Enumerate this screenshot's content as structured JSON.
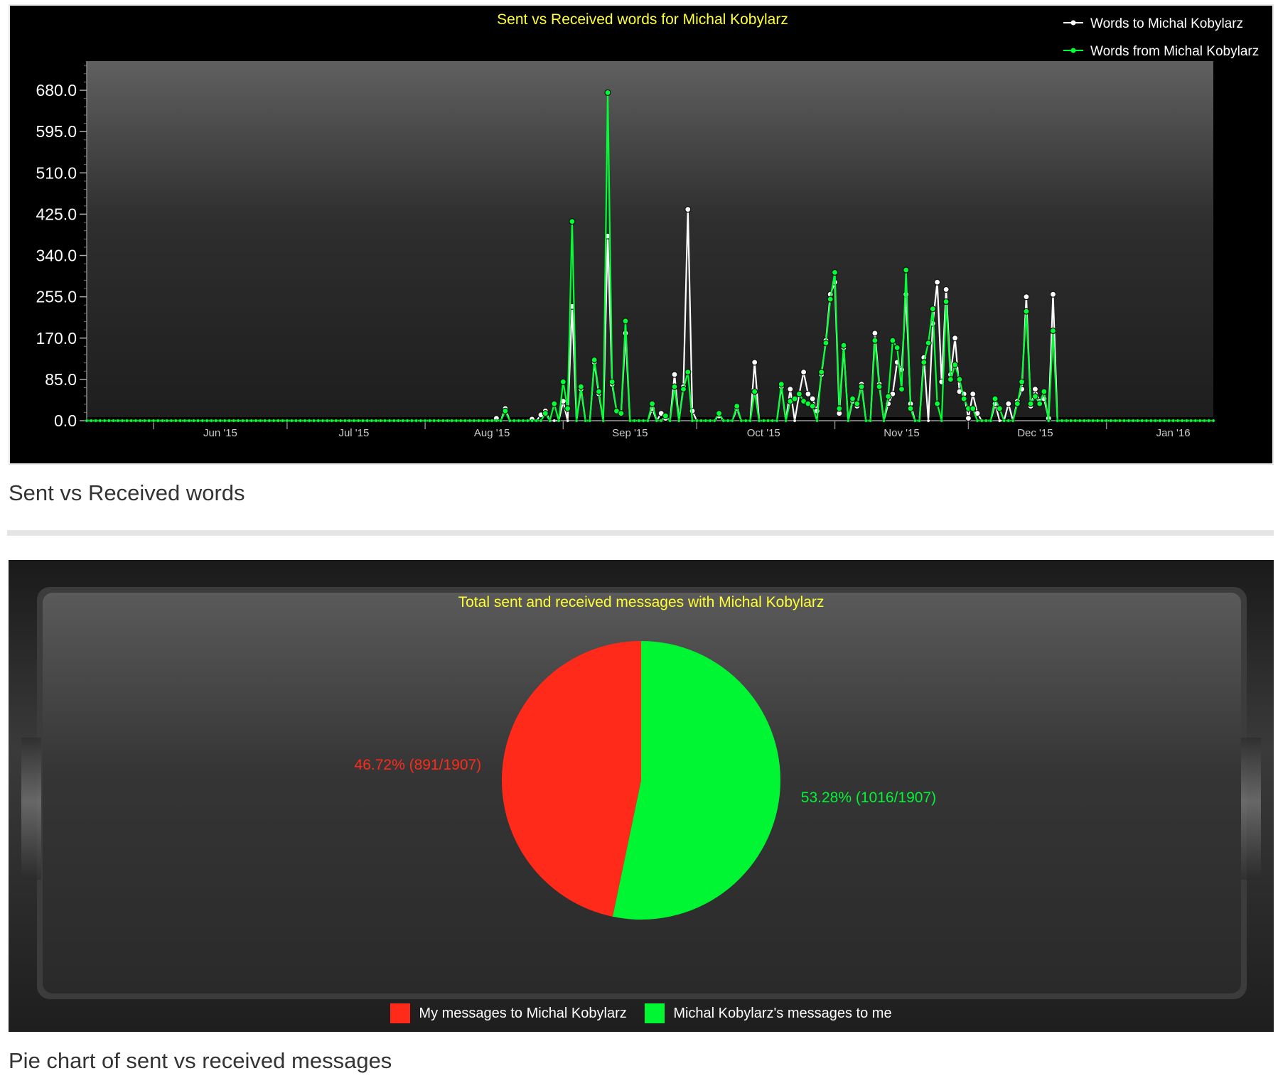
{
  "charts": {
    "words": {
      "caption": "Sent vs Received words",
      "title": "Sent vs Received words for Michal Kobylarz",
      "title_color": "#ffff33",
      "legend": [
        {
          "label": "Words to Michal Kobylarz",
          "color": "#ffffff"
        },
        {
          "label": "Words from Michal Kobylarz",
          "color": "#00ff33"
        }
      ]
    },
    "messages": {
      "caption": "Pie chart of sent vs received messages",
      "title": "Total sent and received messages with Michal Kobylarz",
      "title_color": "#ffff33",
      "legend": [
        {
          "label": "My messages to Michal Kobylarz",
          "color": "#ff2a1a"
        },
        {
          "label": "Michal Kobylarz's messages to me",
          "color": "#00f533"
        }
      ]
    }
  },
  "chart_data": [
    {
      "type": "line",
      "title": "Sent vs Received words for Michal Kobylarz",
      "xlabel": "",
      "ylabel": "",
      "ylim": [
        0,
        740
      ],
      "y_ticks": [
        "0.0",
        "85.0",
        "170.0",
        "255.0",
        "340.0",
        "425.0",
        "510.0",
        "595.0",
        "680.0"
      ],
      "x_ticks": [
        "Jun '15",
        "Jul '15",
        "Aug '15",
        "Sep '15",
        "Oct '15",
        "Nov '15",
        "Dec '15",
        "Jan '16"
      ],
      "x_range": [
        "2015-05-17",
        "2016-01-25"
      ],
      "grid": false,
      "legend_position": "top-right",
      "series": [
        {
          "name": "Words to Michal Kobylarz",
          "color": "#ffffff",
          "points": [
            [
              "2015-08-17",
              5
            ],
            [
              "2015-08-19",
              25
            ],
            [
              "2015-08-25",
              3
            ],
            [
              "2015-08-27",
              12
            ],
            [
              "2015-08-28",
              20
            ],
            [
              "2015-09-01",
              40
            ],
            [
              "2015-09-02",
              0
            ],
            [
              "2015-09-03",
              235
            ],
            [
              "2015-09-05",
              65
            ],
            [
              "2015-09-08",
              120
            ],
            [
              "2015-09-09",
              55
            ],
            [
              "2015-09-10",
              0
            ],
            [
              "2015-09-11",
              380
            ],
            [
              "2015-09-12",
              75
            ],
            [
              "2015-09-13",
              20
            ],
            [
              "2015-09-14",
              15
            ],
            [
              "2015-09-15",
              180
            ],
            [
              "2015-09-21",
              25
            ],
            [
              "2015-09-23",
              15
            ],
            [
              "2015-09-24",
              5
            ],
            [
              "2015-09-26",
              95
            ],
            [
              "2015-09-28",
              70
            ],
            [
              "2015-09-29",
              435
            ],
            [
              "2015-09-30",
              20
            ],
            [
              "2015-10-06",
              10
            ],
            [
              "2015-10-10",
              25
            ],
            [
              "2015-10-14",
              120
            ],
            [
              "2015-10-20",
              70
            ],
            [
              "2015-10-22",
              65
            ],
            [
              "2015-10-24",
              55
            ],
            [
              "2015-10-25",
              100
            ],
            [
              "2015-10-26",
              55
            ],
            [
              "2015-10-27",
              45
            ],
            [
              "2015-10-28",
              20
            ],
            [
              "2015-10-29",
              95
            ],
            [
              "2015-10-30",
              165
            ],
            [
              "2015-10-31",
              260
            ],
            [
              "2015-11-01",
              285
            ],
            [
              "2015-11-02",
              15
            ],
            [
              "2015-11-03",
              150
            ],
            [
              "2015-11-05",
              40
            ],
            [
              "2015-11-06",
              30
            ],
            [
              "2015-11-07",
              75
            ],
            [
              "2015-11-10",
              180
            ],
            [
              "2015-11-11",
              75
            ],
            [
              "2015-11-13",
              35
            ],
            [
              "2015-11-14",
              55
            ],
            [
              "2015-11-15",
              120
            ],
            [
              "2015-11-16",
              105
            ],
            [
              "2015-11-17",
              260
            ],
            [
              "2015-11-18",
              35
            ],
            [
              "2015-11-21",
              130
            ],
            [
              "2015-11-23",
              200
            ],
            [
              "2015-11-24",
              285
            ],
            [
              "2015-11-25",
              80
            ],
            [
              "2015-11-26",
              270
            ],
            [
              "2015-11-27",
              95
            ],
            [
              "2015-11-28",
              170
            ],
            [
              "2015-11-29",
              60
            ],
            [
              "2015-11-30",
              55
            ],
            [
              "2015-12-01",
              5
            ],
            [
              "2015-12-02",
              55
            ],
            [
              "2015-12-03",
              15
            ],
            [
              "2015-12-07",
              35
            ],
            [
              "2015-12-10",
              35
            ],
            [
              "2015-12-12",
              40
            ],
            [
              "2015-12-13",
              65
            ],
            [
              "2015-12-14",
              255
            ],
            [
              "2015-12-15",
              30
            ],
            [
              "2015-12-16",
              65
            ],
            [
              "2015-12-17",
              40
            ],
            [
              "2015-12-18",
              45
            ],
            [
              "2015-12-19",
              5
            ],
            [
              "2015-12-20",
              260
            ]
          ]
        },
        {
          "name": "Words from Michal Kobylarz",
          "color": "#00ff33",
          "points": [
            [
              "2015-08-19",
              20
            ],
            [
              "2015-08-28",
              15
            ],
            [
              "2015-08-30",
              35
            ],
            [
              "2015-09-01",
              80
            ],
            [
              "2015-09-02",
              25
            ],
            [
              "2015-09-03",
              410
            ],
            [
              "2015-09-05",
              70
            ],
            [
              "2015-09-08",
              125
            ],
            [
              "2015-09-09",
              60
            ],
            [
              "2015-09-11",
              675
            ],
            [
              "2015-09-12",
              80
            ],
            [
              "2015-09-13",
              20
            ],
            [
              "2015-09-14",
              15
            ],
            [
              "2015-09-15",
              205
            ],
            [
              "2015-09-21",
              35
            ],
            [
              "2015-09-24",
              10
            ],
            [
              "2015-09-26",
              70
            ],
            [
              "2015-09-28",
              65
            ],
            [
              "2015-09-29",
              100
            ],
            [
              "2015-10-06",
              15
            ],
            [
              "2015-10-10",
              30
            ],
            [
              "2015-10-14",
              60
            ],
            [
              "2015-10-20",
              75
            ],
            [
              "2015-10-22",
              40
            ],
            [
              "2015-10-23",
              45
            ],
            [
              "2015-10-24",
              55
            ],
            [
              "2015-10-25",
              40
            ],
            [
              "2015-10-26",
              35
            ],
            [
              "2015-10-27",
              30
            ],
            [
              "2015-10-29",
              100
            ],
            [
              "2015-10-30",
              160
            ],
            [
              "2015-10-31",
              250
            ],
            [
              "2015-11-01",
              305
            ],
            [
              "2015-11-02",
              25
            ],
            [
              "2015-11-03",
              155
            ],
            [
              "2015-11-05",
              45
            ],
            [
              "2015-11-06",
              35
            ],
            [
              "2015-11-07",
              70
            ],
            [
              "2015-11-10",
              165
            ],
            [
              "2015-11-11",
              70
            ],
            [
              "2015-11-13",
              50
            ],
            [
              "2015-11-14",
              165
            ],
            [
              "2015-11-15",
              150
            ],
            [
              "2015-11-16",
              65
            ],
            [
              "2015-11-17",
              310
            ],
            [
              "2015-11-18",
              25
            ],
            [
              "2015-11-21",
              120
            ],
            [
              "2015-11-22",
              160
            ],
            [
              "2015-11-23",
              230
            ],
            [
              "2015-11-24",
              35
            ],
            [
              "2015-11-26",
              245
            ],
            [
              "2015-11-27",
              85
            ],
            [
              "2015-11-28",
              115
            ],
            [
              "2015-11-29",
              85
            ],
            [
              "2015-11-30",
              45
            ],
            [
              "2015-12-01",
              25
            ],
            [
              "2015-12-02",
              25
            ],
            [
              "2015-12-07",
              45
            ],
            [
              "2015-12-08",
              25
            ],
            [
              "2015-12-12",
              35
            ],
            [
              "2015-12-13",
              80
            ],
            [
              "2015-12-14",
              225
            ],
            [
              "2015-12-15",
              35
            ],
            [
              "2015-12-16",
              50
            ],
            [
              "2015-12-17",
              35
            ],
            [
              "2015-12-18",
              60
            ],
            [
              "2015-12-20",
              185
            ]
          ]
        }
      ]
    },
    {
      "type": "pie",
      "title": "Total sent and received messages with Michal Kobylarz",
      "slices": [
        {
          "name": "My messages to Michal Kobylarz",
          "value": 891,
          "label": "46.72% (891/1907)",
          "color": "#ff2a1a"
        },
        {
          "name": "Michal Kobylarz's messages to me",
          "value": 1016,
          "label": "53.28% (1016/1907)",
          "color": "#00f533"
        }
      ],
      "total": 1907,
      "legend_position": "bottom"
    }
  ]
}
